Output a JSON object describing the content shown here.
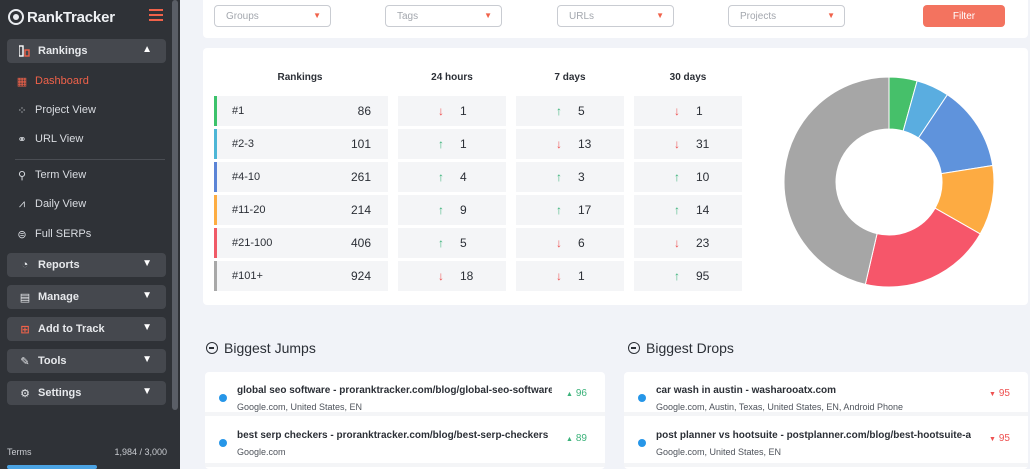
{
  "app": {
    "logo_text": "RankTracker"
  },
  "sidebar": {
    "rankings_label": "Rankings",
    "sub_items": [
      {
        "label": "Dashboard",
        "icon": "dashboard-icon"
      },
      {
        "label": "Project View",
        "icon": "project-icon"
      },
      {
        "label": "URL View",
        "icon": "link-icon"
      },
      {
        "label": "Term View",
        "icon": "key-icon"
      },
      {
        "label": "Daily View",
        "icon": "line-chart-icon"
      },
      {
        "label": "Full SERPs",
        "icon": "serp-icon"
      }
    ],
    "sections": [
      {
        "label": "Reports",
        "icon": "pie-icon"
      },
      {
        "label": "Manage",
        "icon": "manage-icon"
      },
      {
        "label": "Add to Track",
        "icon": "plus-square-icon"
      },
      {
        "label": "Tools",
        "icon": "tools-icon"
      },
      {
        "label": "Settings",
        "icon": "gear-icon"
      }
    ],
    "footer_link": "Terms",
    "footer_usage": "1,984 / 3,000"
  },
  "filters": {
    "groups": "Groups",
    "tags": "Tags",
    "urls": "URLs",
    "projects": "Projects",
    "button": "Filter"
  },
  "rankings": {
    "headers": {
      "rankings": "Rankings",
      "h24": "24 hours",
      "d7": "7 days",
      "d30": "30 days"
    },
    "rows": [
      {
        "range": "#1",
        "count": "86",
        "color": "#3cc26b",
        "h24": {
          "dir": "down",
          "val": "1"
        },
        "d7": {
          "dir": "up",
          "val": "5"
        },
        "d30": {
          "dir": "down",
          "val": "1"
        }
      },
      {
        "range": "#2-3",
        "count": "101",
        "color": "#4db6d6",
        "h24": {
          "dir": "up",
          "val": "1"
        },
        "d7": {
          "dir": "down",
          "val": "13"
        },
        "d30": {
          "dir": "down",
          "val": "31"
        }
      },
      {
        "range": "#4-10",
        "count": "261",
        "color": "#5b84d6",
        "h24": {
          "dir": "up",
          "val": "4"
        },
        "d7": {
          "dir": "up",
          "val": "3"
        },
        "d30": {
          "dir": "up",
          "val": "10"
        }
      },
      {
        "range": "#11-20",
        "count": "214",
        "color": "#fdad42",
        "h24": {
          "dir": "up",
          "val": "9"
        },
        "d7": {
          "dir": "up",
          "val": "17"
        },
        "d30": {
          "dir": "up",
          "val": "14"
        }
      },
      {
        "range": "#21-100",
        "count": "406",
        "color": "#f05a67",
        "h24": {
          "dir": "up",
          "val": "5"
        },
        "d7": {
          "dir": "down",
          "val": "6"
        },
        "d30": {
          "dir": "down",
          "val": "23"
        }
      },
      {
        "range": "#101+",
        "count": "924",
        "color": "#a8a8a8",
        "h24": {
          "dir": "down",
          "val": "18"
        },
        "d7": {
          "dir": "down",
          "val": "1"
        },
        "d30": {
          "dir": "up",
          "val": "95"
        }
      }
    ]
  },
  "chart_data": {
    "type": "pie",
    "categories": [
      "#1",
      "#2-3",
      "#4-10",
      "#11-20",
      "#21-100",
      "#101+"
    ],
    "values": [
      86,
      101,
      261,
      214,
      406,
      924
    ],
    "colors": [
      "#46c06a",
      "#5aade0",
      "#5f93dc",
      "#fdab42",
      "#f6566a",
      "#a6a6a6"
    ],
    "donut": true
  },
  "jumps": {
    "title": "Biggest Jumps",
    "items": [
      {
        "keyword": "global seo software - proranktracker.com/blog/global-seo-software",
        "meta": "Google.com, United States, EN",
        "change": "96"
      },
      {
        "keyword": "best serp checkers - proranktracker.com/blog/best-serp-checkers",
        "meta": "Google.com",
        "change": "89"
      }
    ]
  },
  "drops": {
    "title": "Biggest Drops",
    "items": [
      {
        "keyword": "car wash in austin - washarooatx.com",
        "meta": "Google.com, Austin, Texas, United States, EN, Android Phone",
        "change": "95"
      },
      {
        "keyword": "post planner vs hootsuite - postplanner.com/blog/best-hootsuite-alternat...",
        "meta": "Google.com, United States, EN",
        "change": "95"
      }
    ]
  }
}
